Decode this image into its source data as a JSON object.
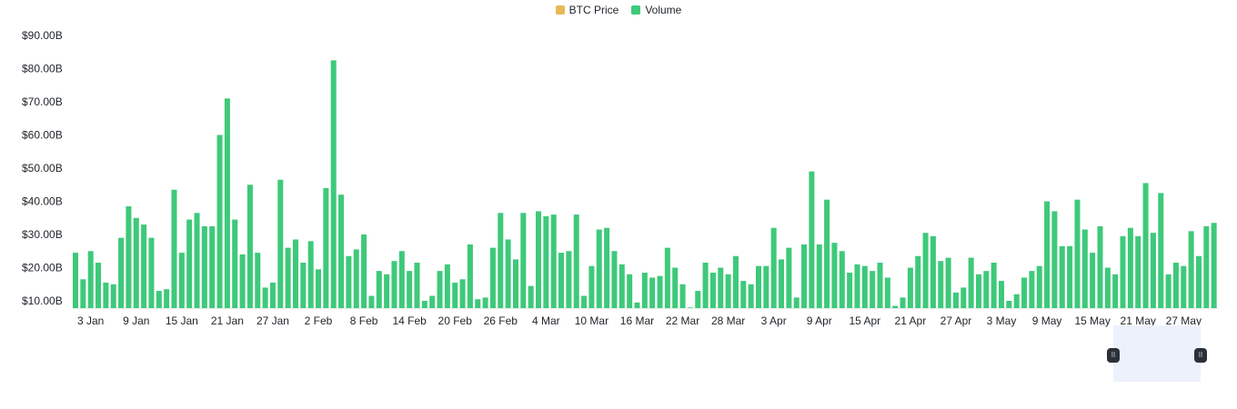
{
  "legend": {
    "items": [
      {
        "label": "BTC Price",
        "color": "#e8b957"
      },
      {
        "label": "Volume",
        "color": "#3ec97a"
      }
    ]
  },
  "chart_data": {
    "type": "bar",
    "title": "",
    "xlabel": "",
    "ylabel": "",
    "ylim": [
      8,
      90
    ],
    "y_ticks": [
      "$10.00B",
      "$20.00B",
      "$30.00B",
      "$40.00B",
      "$50.00B",
      "$60.00B",
      "$70.00B",
      "$80.00B",
      "$90.00B"
    ],
    "x_ticks": [
      "3 Jan",
      "9 Jan",
      "15 Jan",
      "21 Jan",
      "27 Jan",
      "2 Feb",
      "8 Feb",
      "14 Feb",
      "20 Feb",
      "26 Feb",
      "4 Mar",
      "10 Mar",
      "16 Mar",
      "22 Mar",
      "28 Mar",
      "3 Apr",
      "9 Apr",
      "15 Apr",
      "21 Apr",
      "27 Apr",
      "3 May",
      "9 May",
      "15 May",
      "21 May",
      "27 May"
    ],
    "grid": false,
    "legend_position": "top-center",
    "series": [
      {
        "name": "Volume",
        "color": "#3ec97a",
        "unit": "B USD",
        "values": [
          24.5,
          16.5,
          25,
          21.5,
          15.5,
          15,
          29,
          38.5,
          35,
          33,
          29,
          13,
          13.5,
          43.5,
          24.5,
          34.5,
          36.5,
          32.5,
          32.5,
          60,
          71,
          34.5,
          24,
          45,
          24.5,
          14,
          15.5,
          46.5,
          26,
          28.5,
          21.5,
          28,
          19.5,
          44,
          82.5,
          42,
          23.5,
          25.5,
          30,
          11.5,
          19,
          18,
          22,
          25,
          19,
          21.5,
          10,
          11.5,
          19,
          21,
          15.5,
          16.5,
          27,
          10.5,
          11,
          26,
          36.5,
          28.5,
          22.5,
          36.5,
          14.5,
          37,
          35.5,
          36,
          24.5,
          25,
          36,
          11.5,
          20.5,
          31.5,
          32,
          25,
          21,
          18,
          9.5,
          18.5,
          17,
          17.5,
          26,
          20,
          15,
          8,
          13,
          21.5,
          18.5,
          20,
          18,
          23.5,
          16,
          15,
          20.5,
          20.5,
          32,
          22.5,
          26,
          11,
          27,
          49,
          27,
          40.5,
          27.5,
          25,
          18.5,
          21,
          20.5,
          19,
          21.5,
          17,
          8.5,
          11,
          20,
          23.5,
          30.5,
          29.5,
          22,
          23,
          12.5,
          14,
          23,
          18,
          19,
          21.5,
          16,
          10,
          12,
          17,
          19,
          20.5,
          40,
          37,
          26.5,
          26.5,
          40.5,
          31.5,
          24.5,
          32.5,
          20,
          18,
          29.5,
          32,
          29.5,
          45.5,
          30.5,
          42.5,
          18,
          21.5,
          20.5,
          31,
          23.5,
          32.5,
          33.5
        ]
      }
    ]
  },
  "navigator": {
    "left_handle_glyph": "II",
    "right_handle_glyph": "II"
  }
}
